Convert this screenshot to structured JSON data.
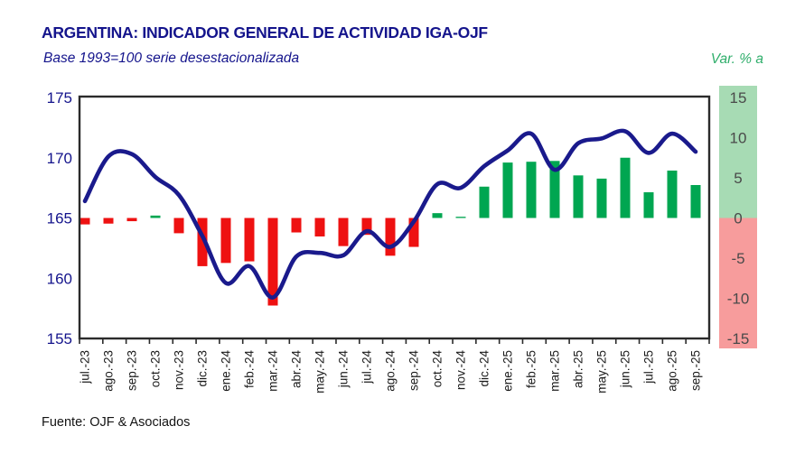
{
  "header": {
    "title": "ARGENTINA: INDICADOR GENERAL DE ACTIVIDAD IGA-OJF",
    "subtitle": "Base 1993=100 serie desestacionalizada",
    "right_axis_label": "Var. % a"
  },
  "footer": {
    "source": "Fuente: OJF & Asociados"
  },
  "colors": {
    "line": "#1a1a8c",
    "bar_negative": "#ee1111",
    "bar_positive": "#00a651",
    "strip_positive": "#a7dbb4",
    "strip_negative": "#f79c9c",
    "title_navy": "#14148c",
    "var_label_green": "#2fae6b",
    "left_axis_text": "#14148c",
    "right_axis_text": "#4a4a4a",
    "month_text": "#1a1a1a",
    "plot_border": "#2b2b2b"
  },
  "chart_data": {
    "type": "combo-line-bar",
    "title": "ARGENTINA: INDICADOR GENERAL DE ACTIVIDAD IGA-OJF",
    "subtitle": "Base 1993=100 serie desestacionalizada",
    "categories": [
      "jul.-23",
      "ago.-23",
      "sep.-23",
      "oct.-23",
      "nov.-23",
      "dic.-23",
      "ene.-24",
      "feb.-24",
      "mar.-24",
      "abr.-24",
      "may.-24",
      "jun.-24",
      "jul.-24",
      "ago.-24",
      "sep.-24",
      "oct.-24",
      "nov.-24",
      "dic.-24",
      "ene.-25",
      "feb.-25",
      "mar.-25",
      "abr.-25",
      "may.-25",
      "jun.-25",
      "jul.-25",
      "ago.-25",
      "sep.-25"
    ],
    "left_axis": {
      "min": 155,
      "max": 175,
      "ticks": [
        175,
        170,
        165,
        160,
        155
      ],
      "grid": false
    },
    "right_axis": {
      "min": -15,
      "max": 15,
      "ticks": [
        15,
        10,
        5,
        0,
        -5,
        -10,
        -15
      ],
      "label": "Var. % a"
    },
    "series": {
      "line": {
        "kind": "line",
        "name": "nivel-serie-desestacionalizada",
        "axis": "left",
        "values": [
          166.4,
          170.1,
          170.3,
          168.4,
          166.9,
          163.5,
          159.6,
          161.0,
          158.4,
          161.8,
          162.1,
          161.9,
          163.9,
          162.6,
          164.7,
          167.8,
          167.5,
          169.3,
          170.6,
          172.0,
          169.0,
          171.2,
          171.6,
          172.2,
          170.4,
          172.0,
          170.5
        ]
      },
      "bars": {
        "kind": "bar",
        "name": "variacion-anual-pct",
        "axis": "right",
        "values": [
          -0.8,
          -0.7,
          -0.4,
          0.3,
          -1.9,
          -6.0,
          -5.6,
          -5.4,
          -10.9,
          -1.8,
          -2.3,
          -3.5,
          -2.1,
          -4.7,
          -3.6,
          0.6,
          0.15,
          3.9,
          6.9,
          7.0,
          7.1,
          5.3,
          4.9,
          7.5,
          3.2,
          5.9,
          4.1
        ]
      }
    }
  }
}
